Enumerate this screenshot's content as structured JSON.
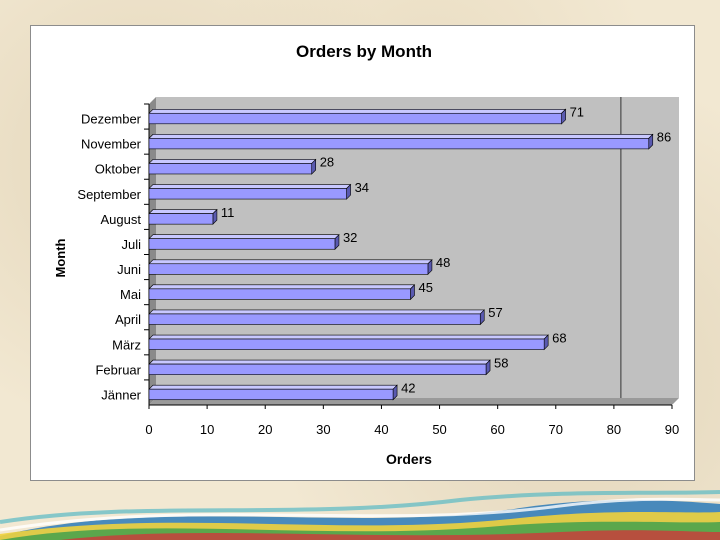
{
  "chart_data": {
    "type": "bar",
    "orientation": "horizontal",
    "title": "Orders by Month",
    "xlabel": "Orders",
    "ylabel": "Month",
    "categories": [
      "Dezember",
      "November",
      "Oktober",
      "September",
      "August",
      "Juli",
      "Juni",
      "Mai",
      "April",
      "März",
      "Februar",
      "Jänner"
    ],
    "values": [
      71,
      86,
      28,
      34,
      11,
      32,
      48,
      45,
      57,
      68,
      58,
      42
    ],
    "xlim": [
      0,
      90
    ],
    "xticks": [
      0,
      10,
      20,
      30,
      40,
      50,
      60,
      70,
      80,
      90
    ],
    "grid": false,
    "legend": "none",
    "colors": {
      "bar_face": "#9999ff",
      "bar_top": "#c8c8ff",
      "bar_side": "#5a5ab0",
      "plot_wall": "#c0c0c0",
      "plot_floor": "#9a9a9a",
      "text": "#000000",
      "panel_background": "#ffffff"
    }
  }
}
